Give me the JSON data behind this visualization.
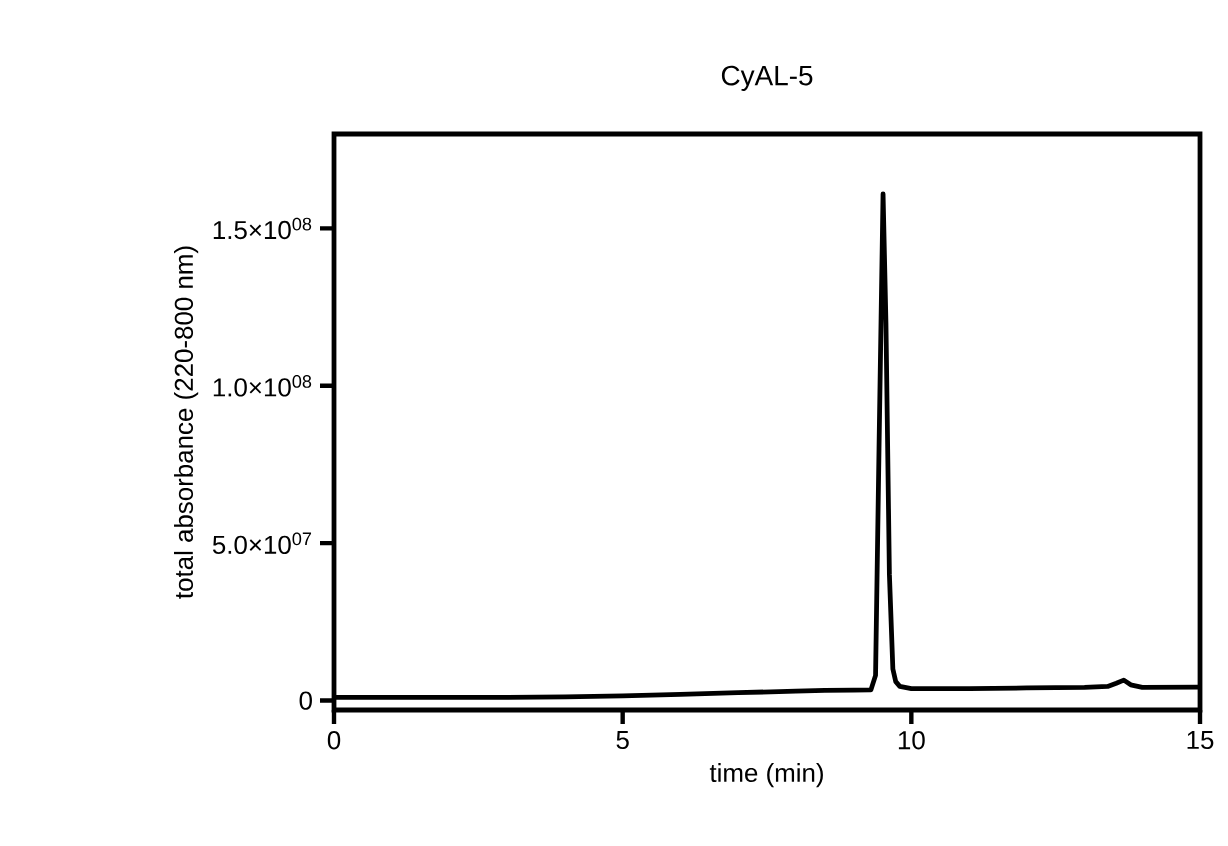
{
  "chart_data": {
    "type": "line",
    "title": "CyAL-5",
    "xlabel": "time (min)",
    "ylabel": "total absorbance (220-800 nm)",
    "xlim": [
      0,
      15
    ],
    "xticks": [
      0,
      5,
      10,
      15
    ],
    "ylim": [
      -3000000,
      180000000
    ],
    "yticks": [
      0,
      {
        "value": 50000000,
        "label": "5.0×10$^{07}$"
      },
      {
        "value": 100000000,
        "label": "1.0×10$^{08}$"
      },
      {
        "value": 150000000,
        "label": "1.5×10$^{08}$"
      }
    ],
    "grid": false,
    "marker": "none",
    "line_style": "solid",
    "series": [
      {
        "color": "#000000",
        "x": [
          0,
          1,
          2,
          3,
          4,
          5,
          6,
          7,
          8,
          8.5,
          9,
          9.3,
          9.38,
          9.44,
          9.51,
          9.56,
          9.62,
          9.68,
          9.73,
          9.8,
          10,
          11,
          12,
          13,
          13.4,
          13.55,
          13.68,
          13.8,
          14,
          15
        ],
        "values": [
          1000000,
          1000000,
          1000000,
          1000000,
          1200000,
          1500000,
          2000000,
          2500000,
          3000000,
          3200000,
          3300000,
          3400000,
          8000000,
          80000000,
          161000000,
          120000000,
          40000000,
          10000000,
          6000000,
          4500000,
          3800000,
          3800000,
          4000000,
          4200000,
          4500000,
          5500000,
          6500000,
          5000000,
          4200000,
          4300000
        ]
      }
    ]
  }
}
